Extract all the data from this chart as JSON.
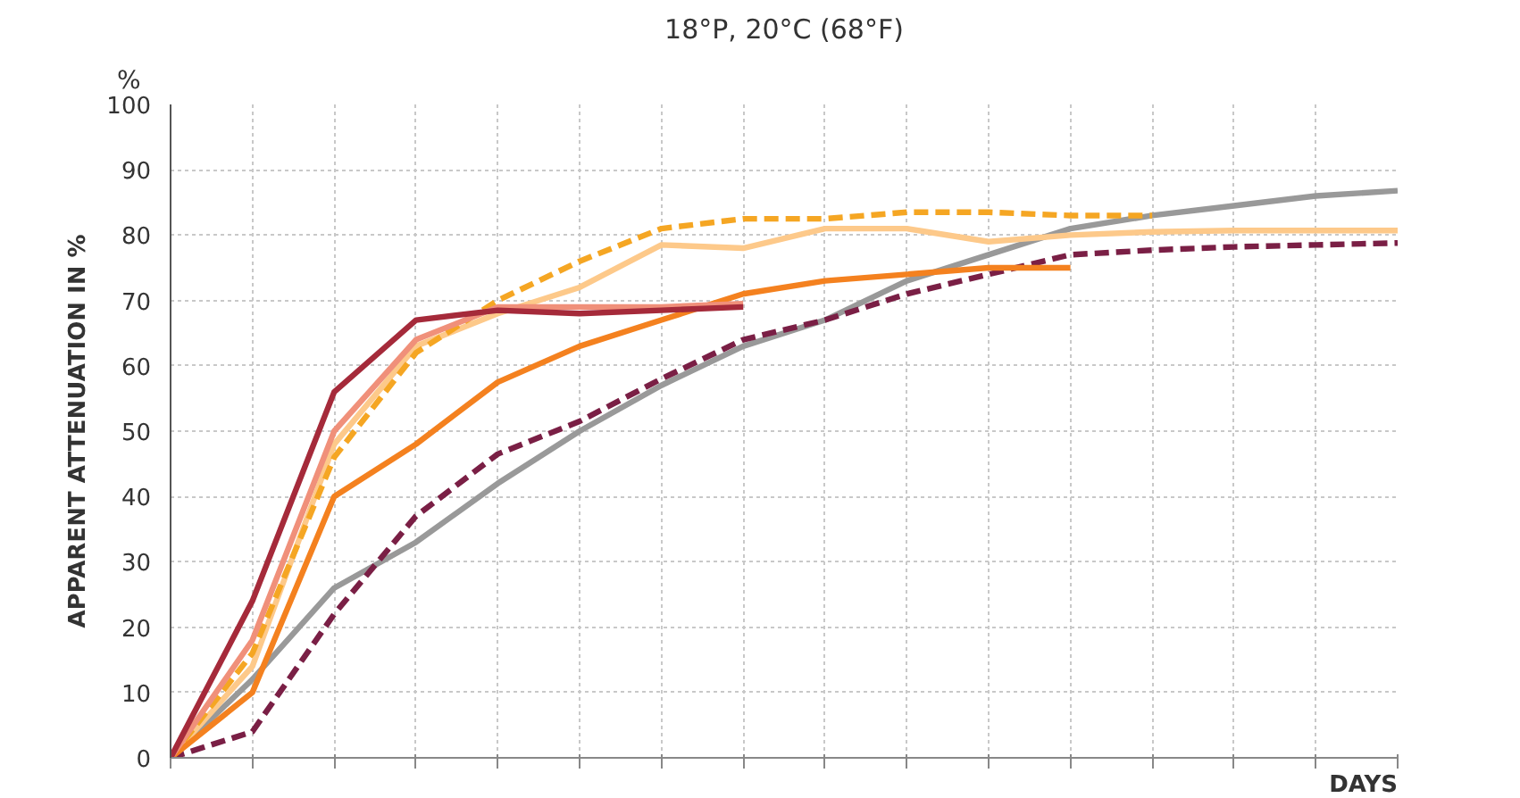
{
  "chart_data": {
    "type": "line",
    "title": "18°P, 20°C (68°F)",
    "ylabel": "APPARENT ATTENUATION IN %",
    "xlabel": "DAYS",
    "annotations": [
      "%"
    ],
    "categories": [
      null,
      null,
      null,
      null,
      null,
      null,
      null,
      null,
      null,
      null,
      null,
      null,
      null,
      null,
      null,
      null
    ],
    "ylim": [
      0,
      100
    ],
    "yticks": [
      0,
      10,
      20,
      30,
      40,
      50,
      60,
      70,
      80,
      90,
      100
    ],
    "grid": true,
    "series": [
      {
        "color": "#999999",
        "line_style": "solid",
        "values": [
          0,
          12,
          26,
          33,
          42,
          50,
          57,
          63,
          67,
          73,
          77,
          81,
          83,
          84.5,
          86,
          86.8
        ]
      },
      {
        "color": "#7a1f45",
        "line_style": "dashed",
        "values": [
          0,
          4,
          22,
          37,
          46.5,
          51.5,
          58,
          64,
          67,
          71,
          74,
          77,
          77.7,
          78.2,
          78.5,
          78.8
        ]
      },
      {
        "color": "#fdc98a",
        "line_style": "solid",
        "values": [
          0,
          14,
          48,
          63,
          68,
          72,
          78.5,
          78,
          81,
          81,
          79,
          80,
          80.5,
          80.7,
          80.7,
          80.7
        ]
      },
      {
        "color": "#f5a623",
        "line_style": "dashed",
        "values": [
          0,
          16,
          46,
          62,
          70,
          76,
          81,
          82.5,
          82.5,
          83.5,
          83.5,
          83,
          83,
          null,
          null,
          null
        ]
      },
      {
        "color": "#f4811f",
        "line_style": "solid",
        "values": [
          0,
          10,
          40,
          48,
          57.5,
          63,
          67,
          71,
          73,
          74,
          75,
          75,
          null,
          null,
          null,
          null
        ]
      },
      {
        "color": "#f0907a",
        "line_style": "solid",
        "values": [
          0,
          18,
          50,
          64,
          69,
          69,
          69,
          69.5,
          null,
          null,
          null,
          null,
          null,
          null,
          null,
          null
        ]
      },
      {
        "color": "#a52a3a",
        "line_style": "solid",
        "values": [
          0,
          24,
          56,
          67,
          68.5,
          68,
          68.5,
          69,
          null,
          null,
          null,
          null,
          null,
          null,
          null,
          null
        ]
      }
    ]
  }
}
